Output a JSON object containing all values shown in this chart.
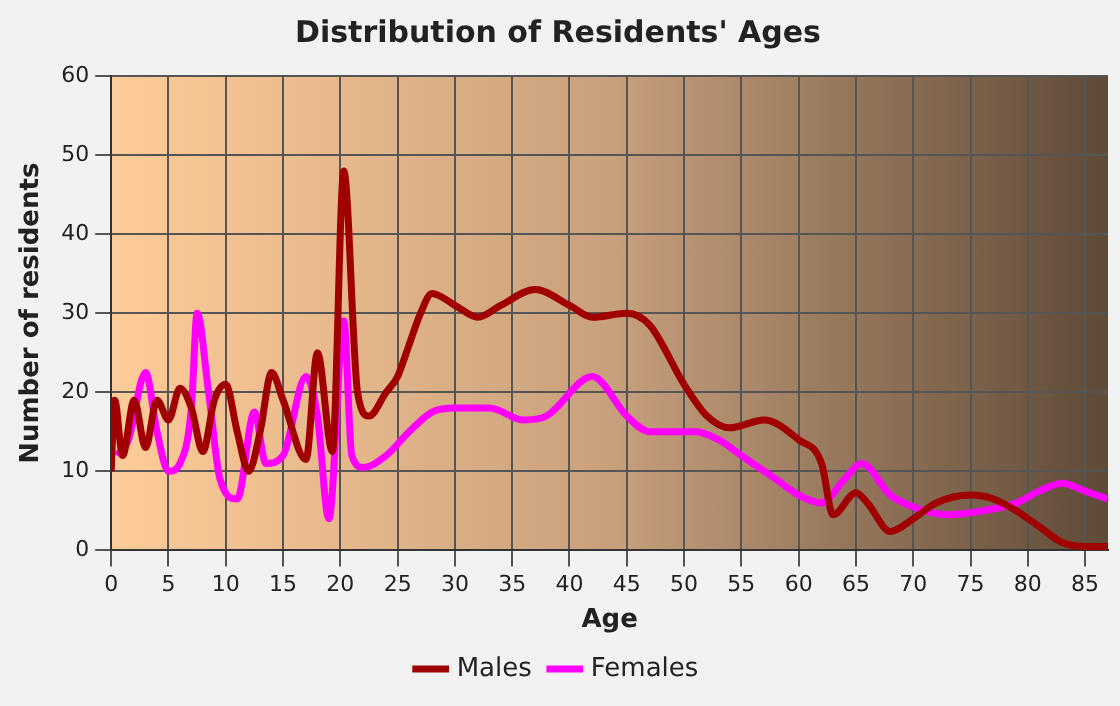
{
  "chart_data": {
    "type": "line",
    "title": "Distribution of Residents' Ages",
    "xlabel": "Age",
    "ylabel": "Number of residents",
    "xlim": [
      0,
      87
    ],
    "xticks": [
      0,
      5,
      10,
      15,
      20,
      25,
      30,
      35,
      40,
      45,
      50,
      55,
      60,
      65,
      70,
      75,
      80,
      85
    ],
    "ylim": [
      0,
      60
    ],
    "yticks": [
      0,
      10,
      20,
      30,
      40,
      50,
      60
    ],
    "grid": true,
    "legend": "bottom",
    "marker": "none",
    "line_style": "solid",
    "series": [
      {
        "name": "Males",
        "color": "#a00000",
        "x": [
          0,
          0.3,
          1,
          2,
          3,
          4,
          5,
          6,
          7,
          8,
          9,
          10,
          11,
          12,
          13,
          14,
          15,
          17,
          18,
          19.3,
          20.3,
          21.5,
          22.5,
          24,
          25,
          26,
          27,
          28,
          30,
          32,
          34,
          37,
          40,
          42,
          45,
          47,
          50,
          52,
          54,
          57,
          60,
          62,
          63,
          65,
          66,
          68,
          70,
          72,
          75,
          77,
          79,
          81,
          83,
          85,
          87
        ],
        "values": [
          10,
          19,
          12,
          19,
          13,
          19,
          16.5,
          20.5,
          18,
          12.5,
          19,
          21,
          15,
          10,
          15,
          22.5,
          19,
          11.5,
          25,
          12.5,
          48,
          20,
          17,
          20,
          22,
          26,
          30,
          32.5,
          31,
          29.5,
          31,
          33,
          31,
          29.5,
          30,
          28.5,
          21,
          17,
          15.5,
          16.5,
          14,
          11,
          4.5,
          7.3,
          6,
          2.4,
          4,
          6,
          7,
          6.5,
          5,
          3,
          1,
          0.5,
          0.5
        ]
      },
      {
        "name": "Females",
        "color": "#ff00ff",
        "x": [
          0.5,
          1.5,
          3,
          4,
          5,
          6,
          7,
          7.5,
          8.5,
          9.5,
          11,
          12.5,
          13.5,
          15,
          17,
          18,
          19,
          20.3,
          21,
          22,
          24,
          26,
          28,
          30,
          33,
          36,
          38,
          42,
          45,
          47,
          51,
          53,
          55,
          58,
          60,
          62,
          64,
          65.5,
          68,
          70,
          73,
          76,
          79,
          81,
          83,
          85,
          87
        ],
        "values": [
          12,
          14,
          22.5,
          15,
          10,
          11,
          18,
          30,
          20,
          9,
          6.5,
          17.5,
          11,
          12,
          22,
          17,
          4,
          29,
          12,
          10.5,
          12,
          15,
          17.5,
          18,
          18,
          16.5,
          17,
          22,
          17,
          15,
          15,
          14,
          12,
          9,
          7,
          6,
          9,
          11,
          7,
          5.5,
          4.5,
          5,
          6,
          7.5,
          8.5,
          7.5,
          6.5
        ]
      }
    ]
  }
}
